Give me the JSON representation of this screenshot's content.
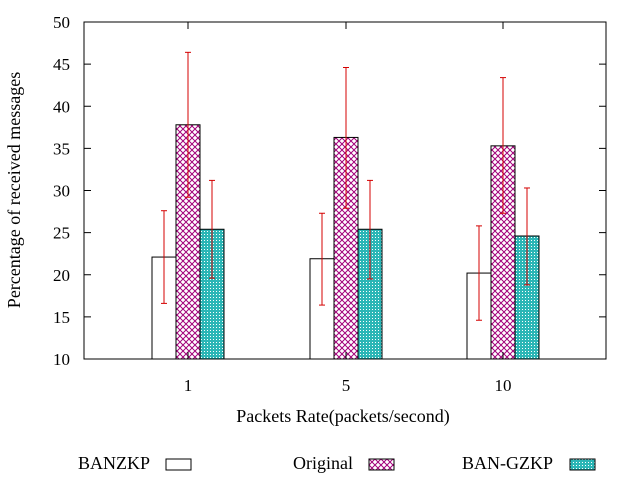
{
  "chart_data": {
    "type": "bar",
    "title": "",
    "xlabel": "Packets Rate(packets/second)",
    "ylabel": "Percentage of received messages",
    "categories": [
      "1",
      "5",
      "10"
    ],
    "ylim": [
      10,
      50
    ],
    "yticks": [
      10,
      15,
      20,
      25,
      30,
      35,
      40,
      45,
      50
    ],
    "grid": false,
    "legend_position": "bottom",
    "series": [
      {
        "name": "BANZKP",
        "values": [
          22.1,
          21.9,
          20.2
        ],
        "error_low": [
          16.6,
          16.4,
          14.6
        ],
        "error_high": [
          27.6,
          27.3,
          25.8
        ],
        "color": "#ffffff",
        "pattern": "none"
      },
      {
        "name": "Original",
        "values": [
          37.8,
          36.3,
          35.3
        ],
        "error_low": [
          29.2,
          27.9,
          27.3
        ],
        "error_high": [
          46.4,
          44.6,
          43.4
        ],
        "color": "#a2007a",
        "pattern": "crosshatch"
      },
      {
        "name": "BAN-GZKP",
        "values": [
          25.4,
          25.4,
          24.6
        ],
        "error_low": [
          19.6,
          19.5,
          18.8
        ],
        "error_high": [
          31.2,
          31.2,
          30.3
        ],
        "color": "#2bb6b6",
        "pattern": "dots"
      }
    ],
    "error_bar_color": "#d40000"
  }
}
